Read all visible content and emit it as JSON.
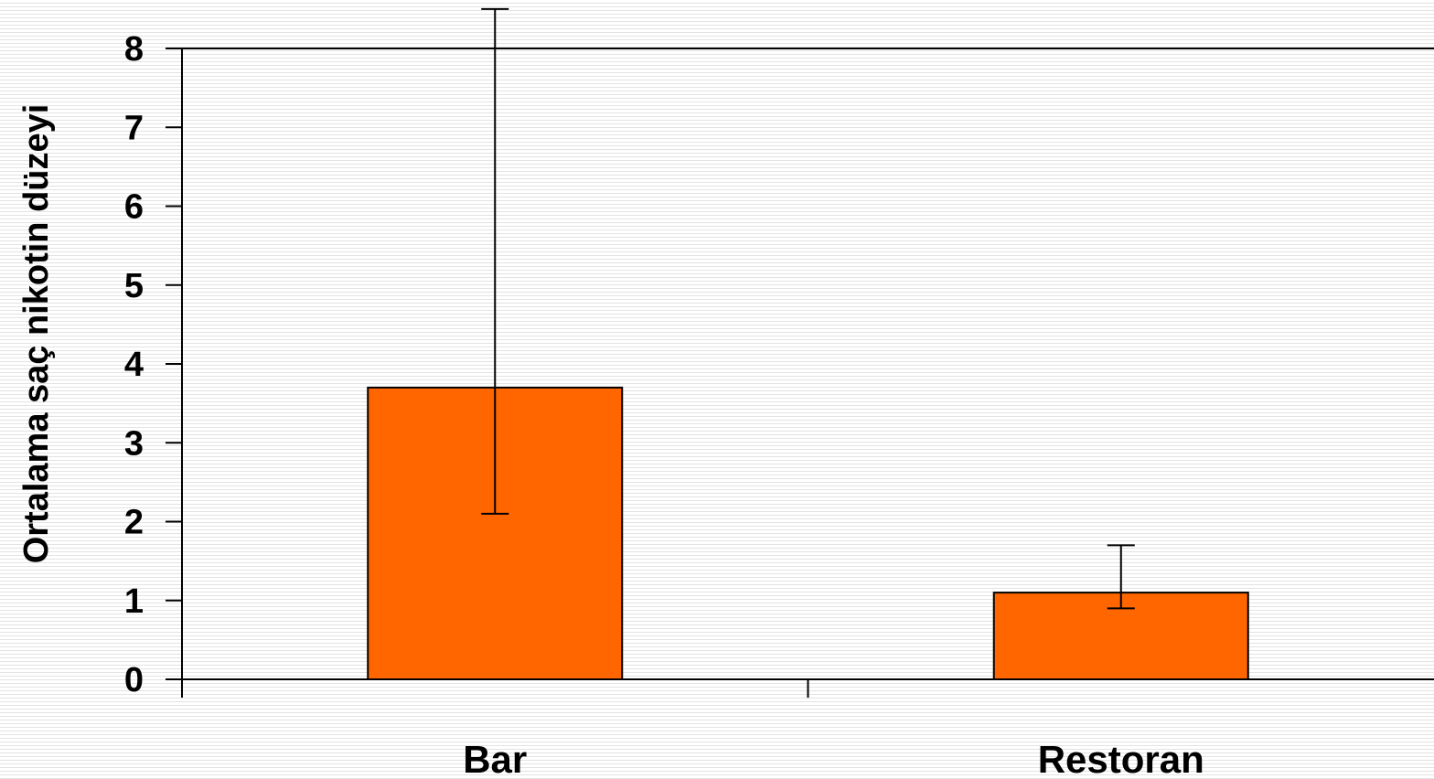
{
  "chart_data": {
    "type": "bar",
    "title": "",
    "xlabel": "",
    "ylabel": "Ortalama saç nikotin düzeyi",
    "categories": [
      "Bar",
      "Restoran"
    ],
    "values": [
      3.7,
      1.1
    ],
    "error_bars": [
      {
        "low": 2.1,
        "high": 8.5
      },
      {
        "low": 0.9,
        "high": 1.7
      }
    ],
    "ylim": [
      0,
      8
    ],
    "yticks": [
      "0",
      "1",
      "2",
      "3",
      "4",
      "5",
      "6",
      "7",
      "8"
    ],
    "grid": false,
    "legend": "none",
    "bar_color": "#ff6600"
  }
}
